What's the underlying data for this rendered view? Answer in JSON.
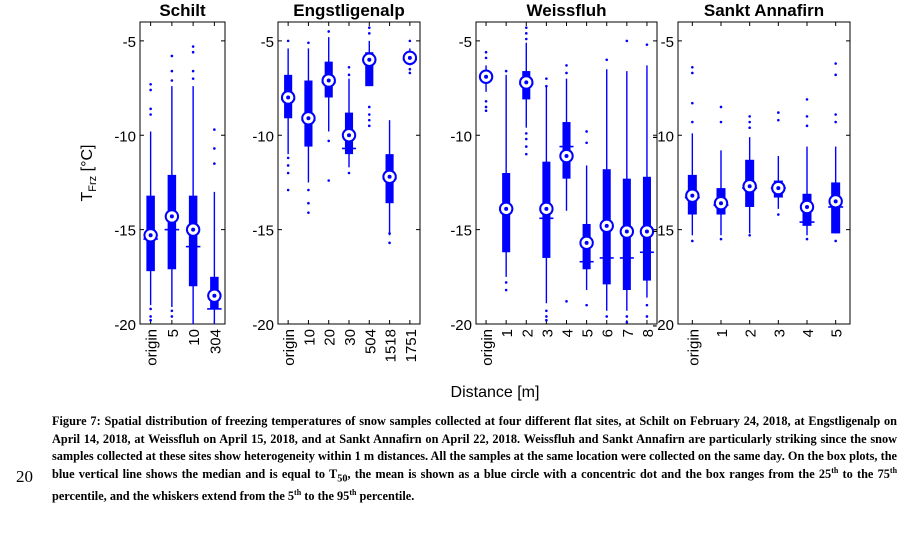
{
  "figure": {
    "ylabel_main": "T",
    "ylabel_sub": "Frz",
    "ylabel_unit": " [°C]",
    "xlabel": "Distance [m]"
  },
  "style": {
    "box_color": "#0000ff",
    "frame_color": "#000000"
  },
  "chart_data": [
    {
      "type": "box",
      "title": "Schilt",
      "categories": [
        "origin",
        "5",
        "10",
        "304"
      ],
      "ylim": [
        -20,
        -4
      ],
      "yticks": [
        -5,
        -10,
        -15,
        -20
      ],
      "boxes": [
        {
          "wlo": -19.0,
          "q1": -17.2,
          "med": -15.5,
          "q3": -13.2,
          "whi": -9.8,
          "mean": -15.3,
          "out": [
            -7.3,
            -7.6,
            -8.6,
            -8.9,
            -19.2,
            -19.6,
            -19.8
          ]
        },
        {
          "wlo": -19.1,
          "q1": -17.1,
          "med": -15.0,
          "q3": -12.1,
          "whi": -7.4,
          "mean": -14.3,
          "out": [
            -5.8,
            -6.6,
            -7.1,
            -19.3,
            -19.6
          ]
        },
        {
          "wlo": -20.0,
          "q1": -18.0,
          "med": -15.9,
          "q3": -13.2,
          "whi": -7.4,
          "mean": -15.0,
          "out": [
            -5.3,
            -5.6,
            -6.6,
            -7.0
          ]
        },
        {
          "wlo": -20.0,
          "q1": -19.2,
          "med": -19.2,
          "q3": -17.5,
          "whi": -13.0,
          "mean": -18.5,
          "out": [
            -9.7,
            -10.7,
            -11.5
          ]
        }
      ]
    },
    {
      "type": "box",
      "title": "Engstligenalp",
      "categories": [
        "origin",
        "10",
        "20",
        "30",
        "504",
        "1518",
        "1751"
      ],
      "ylim": [
        -20,
        -4
      ],
      "yticks": [
        -5,
        -10,
        -15,
        -20
      ],
      "boxes": [
        {
          "wlo": -11.0,
          "q1": -9.1,
          "med": -8.1,
          "q3": -6.8,
          "whi": -5.4,
          "mean": -8.0,
          "out": [
            -11.2,
            -11.6,
            -12.0,
            -12.9,
            -5.0
          ]
        },
        {
          "wlo": -12.5,
          "q1": -10.6,
          "med": -9.2,
          "q3": -7.1,
          "whi": -5.4,
          "mean": -9.1,
          "out": [
            -12.9,
            -13.6,
            -14.1,
            -5.1
          ]
        },
        {
          "wlo": -9.8,
          "q1": -8.0,
          "med": -7.2,
          "q3": -6.1,
          "whi": -4.8,
          "mean": -7.1,
          "out": [
            -10.3,
            -12.4,
            -4.5
          ]
        },
        {
          "wlo": -11.7,
          "q1": -11.0,
          "med": -10.7,
          "q3": -8.8,
          "whi": -7.0,
          "mean": -10.0,
          "out": [
            -6.4,
            -6.8,
            -12.0
          ]
        },
        {
          "wlo": -7.3,
          "q1": -7.4,
          "med": -6.0,
          "q3": -5.6,
          "whi": -5.0,
          "mean": -6.0,
          "out": [
            -8.5,
            -8.9,
            -9.2,
            -9.5,
            -4.6,
            -4.3
          ]
        },
        {
          "wlo": -15.3,
          "q1": -13.6,
          "med": -12.3,
          "q3": -11.0,
          "whi": -9.2,
          "mean": -12.2,
          "out": [
            -15.2,
            -15.7
          ]
        },
        {
          "wlo": -6.3,
          "q1": -6.1,
          "med": -6.0,
          "q3": -5.6,
          "whi": -5.4,
          "mean": -5.9,
          "out": [
            -5.0,
            -6.5,
            -6.7
          ]
        }
      ]
    },
    {
      "type": "box",
      "title": "Weissfluh",
      "categories": [
        "origin",
        "1",
        "2",
        "3",
        "4",
        "5",
        "6",
        "7",
        "8"
      ],
      "ylim": [
        -20,
        -4
      ],
      "yticks": [
        -5,
        -10,
        -15,
        -20
      ],
      "boxes": [
        {
          "wlo": -7.7,
          "q1": -7.2,
          "med": -6.9,
          "q3": -6.6,
          "whi": -6.3,
          "mean": -6.9,
          "out": [
            -5.6,
            -5.9,
            -8.2,
            -8.5,
            -8.7
          ]
        },
        {
          "wlo": -17.5,
          "q1": -16.2,
          "med": -13.9,
          "q3": -12.0,
          "whi": -6.8,
          "mean": -13.9,
          "out": [
            -6.6,
            -17.8,
            -18.2
          ]
        },
        {
          "wlo": -9.6,
          "q1": -8.1,
          "med": -7.3,
          "q3": -6.6,
          "whi": -5.1,
          "mean": -7.2,
          "out": [
            -4.3,
            -4.6,
            -4.9,
            -9.9,
            -10.2,
            -10.6,
            -11.0
          ]
        },
        {
          "wlo": -18.9,
          "q1": -16.5,
          "med": -14.4,
          "q3": -11.4,
          "whi": -7.4,
          "mean": -13.9,
          "out": [
            -7.0,
            -7.4,
            -19.3,
            -19.6,
            -19.8
          ]
        },
        {
          "wlo": -14.0,
          "q1": -12.3,
          "med": -10.6,
          "q3": -9.3,
          "whi": -7.0,
          "mean": -11.1,
          "out": [
            -6.7,
            -6.3,
            -18.8
          ]
        },
        {
          "wlo": -18.2,
          "q1": -17.1,
          "med": -16.7,
          "q3": -14.7,
          "whi": -11.6,
          "mean": -15.7,
          "out": [
            -9.8,
            -10.4,
            -19.0
          ]
        },
        {
          "wlo": -19.3,
          "q1": -17.9,
          "med": -16.5,
          "q3": -11.8,
          "whi": -6.5,
          "mean": -14.8,
          "out": [
            -6.0,
            -19.6
          ]
        },
        {
          "wlo": -19.3,
          "q1": -18.2,
          "med": -16.5,
          "q3": -12.3,
          "whi": -6.6,
          "mean": -15.1,
          "out": [
            -5.0,
            -19.6,
            -19.9
          ]
        },
        {
          "wlo": -18.6,
          "q1": -17.7,
          "med": -16.2,
          "q3": -12.2,
          "whi": -6.3,
          "mean": -15.1,
          "out": [
            -5.2,
            -19.0,
            -19.6
          ]
        }
      ]
    },
    {
      "type": "box",
      "title": "Sankt Annafirn",
      "categories": [
        "origin",
        "1",
        "2",
        "3",
        "4",
        "5"
      ],
      "ylim": [
        -20,
        -4
      ],
      "yticks": [
        -5,
        -10,
        -15,
        -20
      ],
      "boxes": [
        {
          "wlo": -15.3,
          "q1": -14.2,
          "med": -13.3,
          "q3": -12.1,
          "whi": -9.9,
          "mean": -13.2,
          "out": [
            -6.4,
            -6.7,
            -8.3,
            -9.3,
            -15.6
          ]
        },
        {
          "wlo": -15.3,
          "q1": -14.2,
          "med": -13.7,
          "q3": -12.8,
          "whi": -10.8,
          "mean": -13.6,
          "out": [
            -8.5,
            -9.3,
            -15.5
          ]
        },
        {
          "wlo": -15.2,
          "q1": -13.8,
          "med": -12.8,
          "q3": -11.3,
          "whi": -10.1,
          "mean": -12.7,
          "out": [
            -9.0,
            -9.3,
            -9.6,
            -15.3
          ]
        },
        {
          "wlo": -13.9,
          "q1": -13.3,
          "med": -12.8,
          "q3": -12.4,
          "whi": -11.1,
          "mean": -12.8,
          "out": [
            -8.8,
            -9.2,
            -14.2
          ]
        },
        {
          "wlo": -15.3,
          "q1": -14.8,
          "med": -14.6,
          "q3": -13.1,
          "whi": -10.6,
          "mean": -13.8,
          "out": [
            -8.1,
            -9.0,
            -9.5,
            -15.5
          ]
        },
        {
          "wlo": -15.2,
          "q1": -15.2,
          "med": -13.8,
          "q3": -12.5,
          "whi": -10.6,
          "mean": -13.5,
          "out": [
            -6.2,
            -6.8,
            -8.9,
            -9.3,
            -15.6
          ]
        }
      ]
    }
  ],
  "caption": {
    "label": "Figure 7:",
    "part1": " Spatial distribution of freezing temperatures of snow samples collected at four different flat sites, at Schilt on February 24, 2018, at Engstligenalp on April 14, 2018, at Weissfluh on April 15, 2018, and at Sankt Annafirn on April 22, 2018. Weissfluh and Sankt Annafirn are particularly striking since the snow samples collected at these sites show heterogeneity within 1 m distances. All the samples at the same location were collected on the same day. On the box plots, the blue vertical line shows the median and is equal to T",
    "t50_sub": "50",
    "part2": ", the mean is shown as a blue circle with a concentric dot and the box ranges from the 25",
    "sup1": "th",
    "part3": " to the 75",
    "sup2": "th",
    "part4": " percentile, and the whiskers extend from the 5",
    "sup3": "th",
    "part5": " to the 95",
    "sup4": "th",
    "part6": " percentile."
  },
  "page_number": "20"
}
